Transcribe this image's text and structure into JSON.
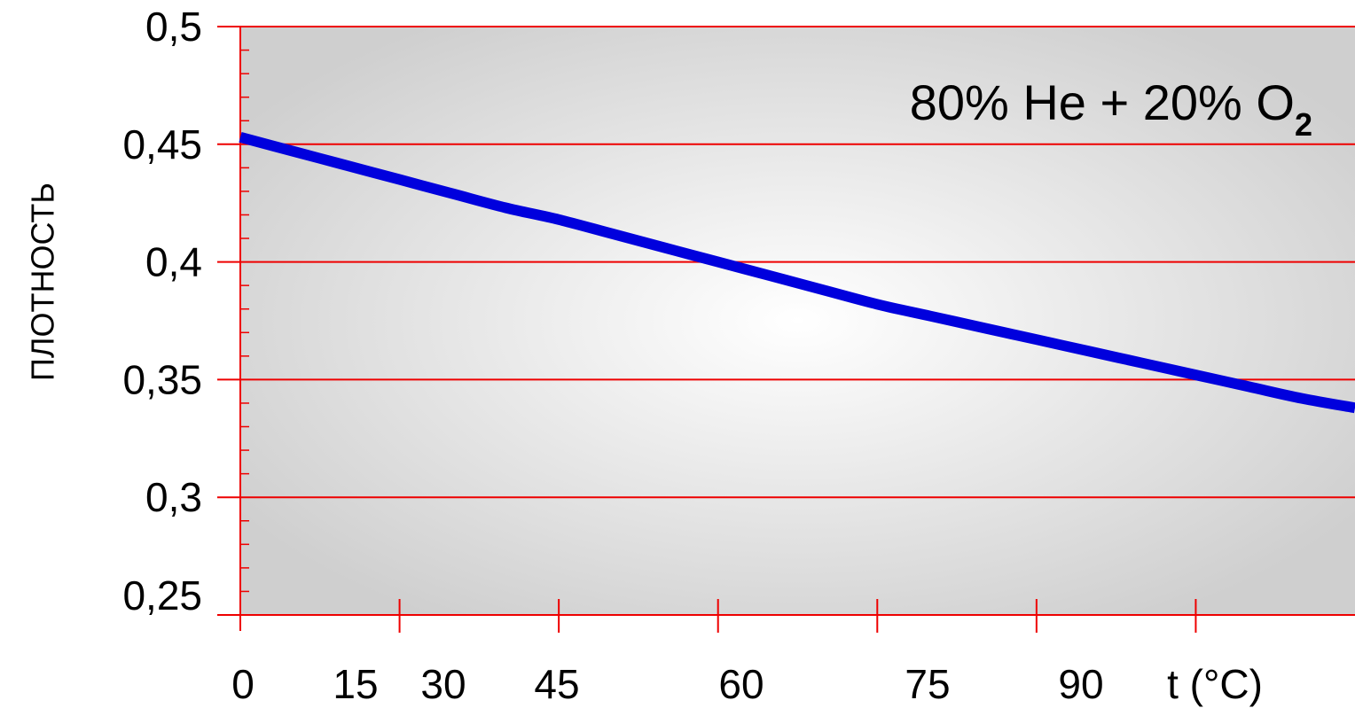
{
  "chart_data": {
    "type": "line",
    "ylabel": "ПЛОТНОСТЬ",
    "xlabel": "t (°C)",
    "annotation": {
      "text": "80% He + 20% O",
      "subscript": "2"
    },
    "xlim": [
      0,
      105
    ],
    "ylim": [
      0.25,
      0.5
    ],
    "x_ticks": [
      {
        "value": 0,
        "label": "0"
      },
      {
        "value": 15,
        "label": "15"
      },
      {
        "value": 30,
        "label": "30"
      },
      {
        "value": 45,
        "label": "45"
      },
      {
        "value": 60,
        "label": "60"
      },
      {
        "value": 75,
        "label": "75"
      },
      {
        "value": 90,
        "label": "90"
      }
    ],
    "y_ticks": [
      {
        "value": 0.25,
        "label": "0,25"
      },
      {
        "value": 0.3,
        "label": "0,3"
      },
      {
        "value": 0.35,
        "label": "0,35"
      },
      {
        "value": 0.4,
        "label": "0,4"
      },
      {
        "value": 0.45,
        "label": "0,45"
      },
      {
        "value": 0.5,
        "label": "0,5"
      }
    ],
    "grid": true,
    "series": [
      {
        "x": [
          0,
          5,
          10,
          15,
          20,
          25,
          30,
          35,
          40,
          45,
          50,
          55,
          60,
          65,
          70,
          75,
          80,
          85,
          90,
          95,
          100,
          105
        ],
        "y": [
          0.453,
          0.447,
          0.441,
          0.435,
          0.429,
          0.423,
          0.418,
          0.412,
          0.406,
          0.4,
          0.394,
          0.388,
          0.382,
          0.377,
          0.372,
          0.367,
          0.362,
          0.357,
          0.352,
          0.347,
          0.342,
          0.338
        ]
      }
    ],
    "colors": {
      "line": "#0000dd",
      "grid": "#ee0000",
      "axis": "#ee0000",
      "plot_bg_center": "#ffffff",
      "plot_bg_edge": "#cfcfcf"
    }
  }
}
